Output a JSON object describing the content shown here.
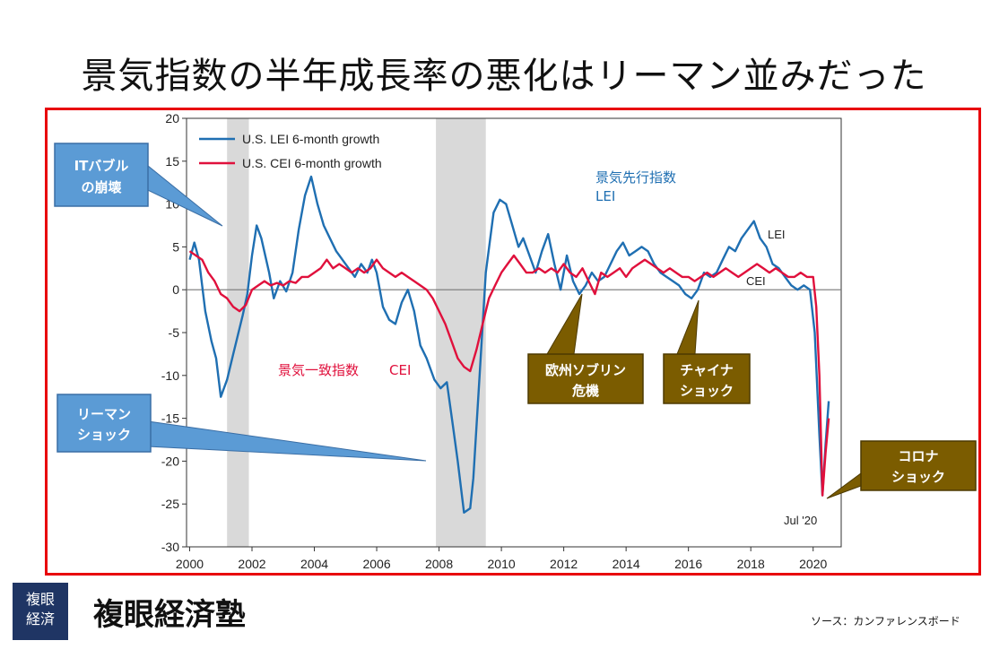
{
  "page": {
    "title": "景気指数の半年成長率の悪化はリーマン並みだった",
    "brand_logo_line1": "複眼",
    "brand_logo_line2": "経済",
    "brand_name": "複眼経済塾",
    "source": "ソース：カンファレンスボード"
  },
  "colors": {
    "frame": "#e8000b",
    "lei": "#1f6fb2",
    "cei": "#e0103c",
    "recession": "#d9d9d9",
    "callout_blue": "#5b9bd5",
    "callout_olive": "#7b5c00",
    "logo": "#1f3564"
  },
  "icons": {
    "logo": "kanji-seal-logo"
  },
  "annotations": {
    "lei_jp": "景気先行指数",
    "lei_en": "LEI",
    "cei_jp": "景気一致指数",
    "cei_en": "CEI",
    "lei_line_label": "LEI",
    "cei_line_label": "CEI",
    "jul20_label": "Jul '20"
  },
  "callouts": {
    "it_bubble_line1": "ITバブル",
    "it_bubble_line2": "の崩壊",
    "lehman_line1": "リーマン",
    "lehman_line2": "ショック",
    "euro_line1": "欧州ソブリン",
    "euro_line2": "危機",
    "china_line1": "チャイナ",
    "china_line2": "ショック",
    "corona_line1": "コロナ",
    "corona_line2": "ショック"
  },
  "chart_data": {
    "type": "line",
    "title": "",
    "xlabel": "",
    "ylabel": "",
    "xlim": [
      1999.9,
      2020.9
    ],
    "ylim": [
      -30,
      20
    ],
    "x_ticks": [
      "2000",
      "2002",
      "2004",
      "2006",
      "2008",
      "2010",
      "2012",
      "2014",
      "2016",
      "2018",
      "2020"
    ],
    "y_ticks": [
      "20",
      "15",
      "10",
      "5",
      "0",
      "-5",
      "-10",
      "-15",
      "-20",
      "-25",
      "-30"
    ],
    "legend_placement": "top-left",
    "grid": false,
    "zero_line": true,
    "recessions": [
      [
        2001.2,
        2001.9
      ],
      [
        2007.9,
        2009.5
      ]
    ],
    "series": [
      {
        "name": "U.S. LEI 6-month growth",
        "points": [
          [
            2000.0,
            3.5
          ],
          [
            2000.15,
            5.5
          ],
          [
            2000.3,
            3.5
          ],
          [
            2000.5,
            -2.5
          ],
          [
            2000.7,
            -6
          ],
          [
            2000.85,
            -8
          ],
          [
            2001.0,
            -12.5
          ],
          [
            2001.2,
            -10.5
          ],
          [
            2001.4,
            -7.5
          ],
          [
            2001.7,
            -3
          ],
          [
            2001.85,
            -0.5
          ],
          [
            2002.0,
            4
          ],
          [
            2002.15,
            7.5
          ],
          [
            2002.3,
            6
          ],
          [
            2002.55,
            2
          ],
          [
            2002.7,
            -1
          ],
          [
            2002.9,
            1
          ],
          [
            2003.1,
            -0.2
          ],
          [
            2003.3,
            2
          ],
          [
            2003.5,
            7
          ],
          [
            2003.7,
            11
          ],
          [
            2003.9,
            13.2
          ],
          [
            2004.1,
            10
          ],
          [
            2004.3,
            7.5
          ],
          [
            2004.5,
            6
          ],
          [
            2004.7,
            4.5
          ],
          [
            2004.9,
            3.5
          ],
          [
            2005.1,
            2.5
          ],
          [
            2005.3,
            1.5
          ],
          [
            2005.5,
            3
          ],
          [
            2005.7,
            2
          ],
          [
            2005.85,
            3.5
          ],
          [
            2006.0,
            2
          ],
          [
            2006.2,
            -2
          ],
          [
            2006.4,
            -3.5
          ],
          [
            2006.6,
            -4
          ],
          [
            2006.8,
            -1.5
          ],
          [
            2007.0,
            0
          ],
          [
            2007.2,
            -2.5
          ],
          [
            2007.4,
            -6.5
          ],
          [
            2007.6,
            -8
          ],
          [
            2007.85,
            -10.5
          ],
          [
            2008.05,
            -11.5
          ],
          [
            2008.25,
            -10.8
          ],
          [
            2008.45,
            -16
          ],
          [
            2008.6,
            -20
          ],
          [
            2008.8,
            -26
          ],
          [
            2009.0,
            -25.5
          ],
          [
            2009.1,
            -22
          ],
          [
            2009.3,
            -10
          ],
          [
            2009.5,
            2
          ],
          [
            2009.75,
            9
          ],
          [
            2009.95,
            10.5
          ],
          [
            2010.15,
            10
          ],
          [
            2010.35,
            7.5
          ],
          [
            2010.55,
            5
          ],
          [
            2010.7,
            6
          ],
          [
            2010.9,
            4
          ],
          [
            2011.1,
            2
          ],
          [
            2011.3,
            4.5
          ],
          [
            2011.5,
            6.5
          ],
          [
            2011.7,
            3
          ],
          [
            2011.9,
            0
          ],
          [
            2012.1,
            4
          ],
          [
            2012.3,
            1
          ],
          [
            2012.5,
            -0.5
          ],
          [
            2012.7,
            0.5
          ],
          [
            2012.9,
            2
          ],
          [
            2013.1,
            1
          ],
          [
            2013.3,
            1.5
          ],
          [
            2013.5,
            3
          ],
          [
            2013.7,
            4.5
          ],
          [
            2013.9,
            5.5
          ],
          [
            2014.1,
            4
          ],
          [
            2014.3,
            4.5
          ],
          [
            2014.5,
            5
          ],
          [
            2014.7,
            4.5
          ],
          [
            2014.9,
            3
          ],
          [
            2015.1,
            2
          ],
          [
            2015.3,
            1.5
          ],
          [
            2015.5,
            1
          ],
          [
            2015.7,
            0.5
          ],
          [
            2015.9,
            -0.5
          ],
          [
            2016.1,
            -1
          ],
          [
            2016.3,
            0
          ],
          [
            2016.5,
            2
          ],
          [
            2016.7,
            1.5
          ],
          [
            2016.9,
            2
          ],
          [
            2017.1,
            3.5
          ],
          [
            2017.3,
            5
          ],
          [
            2017.5,
            4.5
          ],
          [
            2017.7,
            6
          ],
          [
            2017.9,
            7
          ],
          [
            2018.1,
            8
          ],
          [
            2018.3,
            6
          ],
          [
            2018.5,
            5
          ],
          [
            2018.7,
            3
          ],
          [
            2018.9,
            2.5
          ],
          [
            2019.1,
            1.5
          ],
          [
            2019.3,
            0.5
          ],
          [
            2019.5,
            0
          ],
          [
            2019.7,
            0.5
          ],
          [
            2019.9,
            0
          ],
          [
            2020.05,
            -5
          ],
          [
            2020.2,
            -17
          ],
          [
            2020.3,
            -24
          ],
          [
            2020.4,
            -18
          ],
          [
            2020.5,
            -13
          ]
        ]
      },
      {
        "name": "U.S. CEI 6-month growth",
        "points": [
          [
            2000.0,
            4.5
          ],
          [
            2000.2,
            4
          ],
          [
            2000.4,
            3.5
          ],
          [
            2000.6,
            2
          ],
          [
            2000.8,
            1
          ],
          [
            2001.0,
            -0.5
          ],
          [
            2001.2,
            -1
          ],
          [
            2001.4,
            -2
          ],
          [
            2001.6,
            -2.5
          ],
          [
            2001.8,
            -1.8
          ],
          [
            2002.0,
            0
          ],
          [
            2002.2,
            0.5
          ],
          [
            2002.4,
            1
          ],
          [
            2002.6,
            0.5
          ],
          [
            2002.8,
            0.8
          ],
          [
            2003.0,
            0.5
          ],
          [
            2003.2,
            1
          ],
          [
            2003.4,
            0.8
          ],
          [
            2003.6,
            1.5
          ],
          [
            2003.8,
            1.5
          ],
          [
            2004.0,
            2
          ],
          [
            2004.2,
            2.5
          ],
          [
            2004.4,
            3.5
          ],
          [
            2004.6,
            2.5
          ],
          [
            2004.8,
            3
          ],
          [
            2005.0,
            2.5
          ],
          [
            2005.2,
            2
          ],
          [
            2005.4,
            2.5
          ],
          [
            2005.6,
            2
          ],
          [
            2005.8,
            2.5
          ],
          [
            2006.0,
            3.5
          ],
          [
            2006.2,
            2.5
          ],
          [
            2006.4,
            2
          ],
          [
            2006.6,
            1.5
          ],
          [
            2006.8,
            2
          ],
          [
            2007.0,
            1.5
          ],
          [
            2007.2,
            1
          ],
          [
            2007.4,
            0.5
          ],
          [
            2007.6,
            0
          ],
          [
            2007.8,
            -1
          ],
          [
            2008.0,
            -2.5
          ],
          [
            2008.2,
            -4
          ],
          [
            2008.4,
            -6
          ],
          [
            2008.6,
            -8
          ],
          [
            2008.8,
            -9
          ],
          [
            2009.0,
            -9.5
          ],
          [
            2009.2,
            -7
          ],
          [
            2009.4,
            -4
          ],
          [
            2009.6,
            -1
          ],
          [
            2009.8,
            0.5
          ],
          [
            2010.0,
            2
          ],
          [
            2010.2,
            3
          ],
          [
            2010.4,
            4
          ],
          [
            2010.6,
            3
          ],
          [
            2010.8,
            2
          ],
          [
            2011.0,
            2
          ],
          [
            2011.2,
            2.5
          ],
          [
            2011.4,
            2
          ],
          [
            2011.6,
            2.5
          ],
          [
            2011.8,
            2
          ],
          [
            2012.0,
            3
          ],
          [
            2012.2,
            2
          ],
          [
            2012.4,
            1.5
          ],
          [
            2012.6,
            2.5
          ],
          [
            2012.8,
            1
          ],
          [
            2013.0,
            -0.5
          ],
          [
            2013.2,
            2
          ],
          [
            2013.4,
            1.5
          ],
          [
            2013.6,
            2
          ],
          [
            2013.8,
            2.5
          ],
          [
            2014.0,
            1.5
          ],
          [
            2014.2,
            2.5
          ],
          [
            2014.4,
            3
          ],
          [
            2014.6,
            3.5
          ],
          [
            2014.8,
            3
          ],
          [
            2015.0,
            2.5
          ],
          [
            2015.2,
            2
          ],
          [
            2015.4,
            2.5
          ],
          [
            2015.6,
            2
          ],
          [
            2015.8,
            1.5
          ],
          [
            2016.0,
            1.5
          ],
          [
            2016.2,
            1
          ],
          [
            2016.4,
            1.5
          ],
          [
            2016.6,
            2
          ],
          [
            2016.8,
            1.5
          ],
          [
            2017.0,
            2
          ],
          [
            2017.2,
            2.5
          ],
          [
            2017.4,
            2
          ],
          [
            2017.6,
            1.5
          ],
          [
            2017.8,
            2
          ],
          [
            2018.0,
            2.5
          ],
          [
            2018.2,
            3
          ],
          [
            2018.4,
            2.5
          ],
          [
            2018.6,
            2
          ],
          [
            2018.8,
            2.5
          ],
          [
            2019.0,
            2
          ],
          [
            2019.2,
            1.5
          ],
          [
            2019.4,
            1.5
          ],
          [
            2019.6,
            2
          ],
          [
            2019.8,
            1.5
          ],
          [
            2020.0,
            1.5
          ],
          [
            2020.1,
            -2
          ],
          [
            2020.2,
            -10
          ],
          [
            2020.3,
            -24
          ],
          [
            2020.4,
            -19
          ],
          [
            2020.5,
            -15
          ]
        ]
      }
    ]
  }
}
